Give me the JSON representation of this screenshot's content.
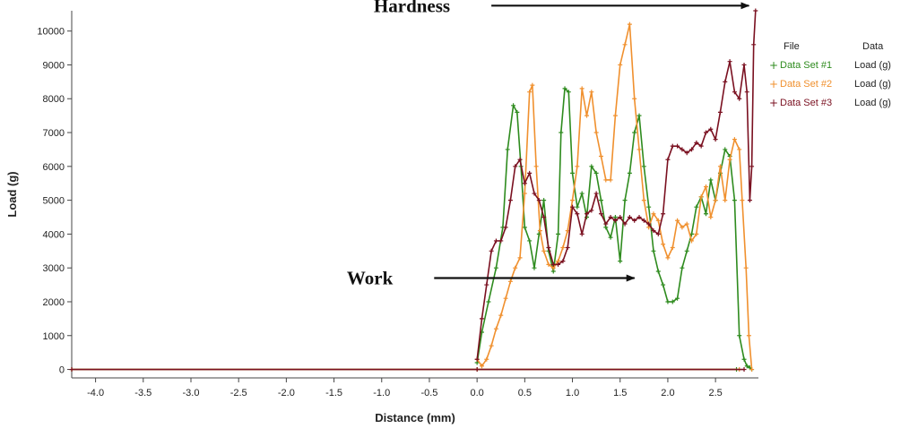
{
  "chart_data": {
    "type": "line",
    "title": "",
    "xlabel": "Distance (mm)",
    "ylabel": "Load (g)",
    "xlim": [
      -4.25,
      2.95
    ],
    "ylim": [
      -250,
      10600
    ],
    "xticks": [
      -4.0,
      -3.5,
      -3.0,
      -2.5,
      -2.0,
      -1.5,
      -1.0,
      -0.5,
      0.0,
      0.5,
      1.0,
      1.5,
      2.0,
      2.5
    ],
    "xtick_labels": [
      "-4.0",
      "-3.5",
      "-3.0",
      "-2.5",
      "-2.0",
      "-1.5",
      "-1.0",
      "-0.5",
      "0.0",
      "0.5",
      "1.0",
      "1.5",
      "2.0",
      "2.5"
    ],
    "yticks": [
      0,
      1000,
      2000,
      3000,
      4000,
      5000,
      6000,
      7000,
      8000,
      9000,
      10000
    ],
    "ytick_labels": [
      "0",
      "1000",
      "2000",
      "3000",
      "4000",
      "5000",
      "6000",
      "7000",
      "8000",
      "9000",
      "10000"
    ],
    "grid": false,
    "legend": {
      "position": "right",
      "header_file": "File",
      "header_data": "Data",
      "entries": [
        {
          "file": "Data Set #1",
          "data": "Load (g)"
        },
        {
          "file": "Data Set #2",
          "data": "Load (g)"
        },
        {
          "file": "Data Set #3",
          "data": "Load (g)"
        }
      ]
    },
    "annotations": [
      {
        "text": "Hardness",
        "arrow_from": [
          0.15,
          10750
        ],
        "arrow_to": [
          2.85,
          10750
        ]
      },
      {
        "text": "Work",
        "arrow_from": [
          -0.45,
          2700
        ],
        "arrow_to": [
          1.65,
          2700
        ]
      }
    ],
    "series": [
      {
        "name": "Data Set #1",
        "color": "#2e8b1e",
        "marker": "+",
        "x": [
          -4.25,
          0.0,
          2.72
        ],
        "y": [
          0,
          0,
          0
        ]
      },
      {
        "name": "Data Set #1",
        "color": "#2e8b1e",
        "marker": "+",
        "x": [
          0.0,
          0.05,
          0.12,
          0.2,
          0.27,
          0.32,
          0.38,
          0.42,
          0.46,
          0.5,
          0.55,
          0.6,
          0.65,
          0.7,
          0.75,
          0.8,
          0.85,
          0.88,
          0.92,
          0.96,
          1.0,
          1.05,
          1.1,
          1.15,
          1.2,
          1.25,
          1.3,
          1.35,
          1.4,
          1.45,
          1.5,
          1.55,
          1.6,
          1.65,
          1.7,
          1.75,
          1.8,
          1.85,
          1.9,
          1.95,
          2.0,
          2.05,
          2.1,
          2.15,
          2.2,
          2.25,
          2.3,
          2.35,
          2.4,
          2.45,
          2.5,
          2.55,
          2.6,
          2.65,
          2.7,
          2.75,
          2.8,
          2.83,
          2.86,
          2.88
        ],
        "y": [
          200,
          1100,
          2000,
          3000,
          4200,
          6500,
          7800,
          7600,
          6000,
          4200,
          3800,
          3000,
          4000,
          5000,
          3500,
          2900,
          4000,
          7000,
          8300,
          8200,
          5800,
          4800,
          5200,
          4500,
          6000,
          5800,
          5000,
          4200,
          3900,
          4500,
          3200,
          5000,
          5800,
          7000,
          7500,
          6000,
          4800,
          3500,
          2900,
          2500,
          2000,
          2000,
          2100,
          3000,
          3500,
          4000,
          4800,
          5100,
          4600,
          5600,
          5000,
          5800,
          6500,
          6300,
          5000,
          1000,
          300,
          100,
          50,
          0
        ]
      },
      {
        "name": "Data Set #2",
        "color": "#f0902e",
        "marker": "+",
        "x": [
          -4.25,
          0.0,
          2.75
        ],
        "y": [
          0,
          0,
          0
        ]
      },
      {
        "name": "Data Set #2",
        "color": "#f0902e",
        "marker": "+",
        "x": [
          0.0,
          0.05,
          0.1,
          0.15,
          0.2,
          0.25,
          0.3,
          0.35,
          0.4,
          0.45,
          0.5,
          0.55,
          0.58,
          0.62,
          0.66,
          0.7,
          0.75,
          0.8,
          0.85,
          0.9,
          0.95,
          1.0,
          1.05,
          1.1,
          1.15,
          1.2,
          1.25,
          1.3,
          1.35,
          1.4,
          1.45,
          1.5,
          1.55,
          1.6,
          1.65,
          1.7,
          1.75,
          1.8,
          1.85,
          1.9,
          1.95,
          2.0,
          2.05,
          2.1,
          2.15,
          2.2,
          2.25,
          2.3,
          2.35,
          2.4,
          2.45,
          2.5,
          2.55,
          2.6,
          2.65,
          2.7,
          2.75,
          2.78,
          2.82,
          2.85,
          2.88
        ],
        "y": [
          300,
          100,
          300,
          700,
          1200,
          1600,
          2100,
          2600,
          3000,
          3300,
          5200,
          8200,
          8400,
          6000,
          4100,
          3500,
          3100,
          3000,
          3200,
          3600,
          4100,
          5000,
          6000,
          8300,
          7500,
          8200,
          7000,
          6300,
          5600,
          5600,
          7500,
          9000,
          9600,
          10200,
          8000,
          6500,
          5000,
          4200,
          4600,
          4400,
          3700,
          3300,
          3600,
          4400,
          4200,
          4300,
          3800,
          4000,
          5100,
          5400,
          4500,
          5000,
          6000,
          5000,
          6200,
          6800,
          6500,
          5000,
          3000,
          1000,
          0
        ]
      },
      {
        "name": "Data Set #3",
        "color": "#7a1020",
        "marker": "+",
        "x": [
          -4.25,
          0.0,
          2.8
        ],
        "y": [
          0,
          0,
          0
        ]
      },
      {
        "name": "Data Set #3",
        "color": "#7a1020",
        "marker": "+",
        "x": [
          0.0,
          0.05,
          0.1,
          0.15,
          0.2,
          0.25,
          0.3,
          0.35,
          0.4,
          0.45,
          0.5,
          0.55,
          0.6,
          0.65,
          0.7,
          0.75,
          0.8,
          0.85,
          0.9,
          0.95,
          1.0,
          1.05,
          1.1,
          1.15,
          1.2,
          1.25,
          1.3,
          1.35,
          1.4,
          1.45,
          1.5,
          1.55,
          1.6,
          1.65,
          1.7,
          1.75,
          1.8,
          1.85,
          1.9,
          1.95,
          2.0,
          2.05,
          2.1,
          2.15,
          2.2,
          2.25,
          2.3,
          2.35,
          2.4,
          2.45,
          2.5,
          2.55,
          2.6,
          2.65,
          2.7,
          2.75,
          2.8,
          2.83,
          2.86,
          2.88,
          2.9,
          2.92
        ],
        "y": [
          300,
          1500,
          2500,
          3500,
          3800,
          3800,
          4200,
          5000,
          6000,
          6200,
          5500,
          5800,
          5200,
          5000,
          4500,
          3600,
          3100,
          3100,
          3200,
          3600,
          4800,
          4600,
          4000,
          4600,
          4700,
          5200,
          4600,
          4300,
          4500,
          4400,
          4500,
          4300,
          4500,
          4400,
          4500,
          4400,
          4300,
          4100,
          4000,
          4600,
          6200,
          6600,
          6600,
          6500,
          6400,
          6500,
          6700,
          6600,
          7000,
          7100,
          6800,
          7600,
          8500,
          9100,
          8200,
          8000,
          9000,
          8200,
          5000,
          6000,
          9600,
          10600
        ]
      }
    ]
  }
}
